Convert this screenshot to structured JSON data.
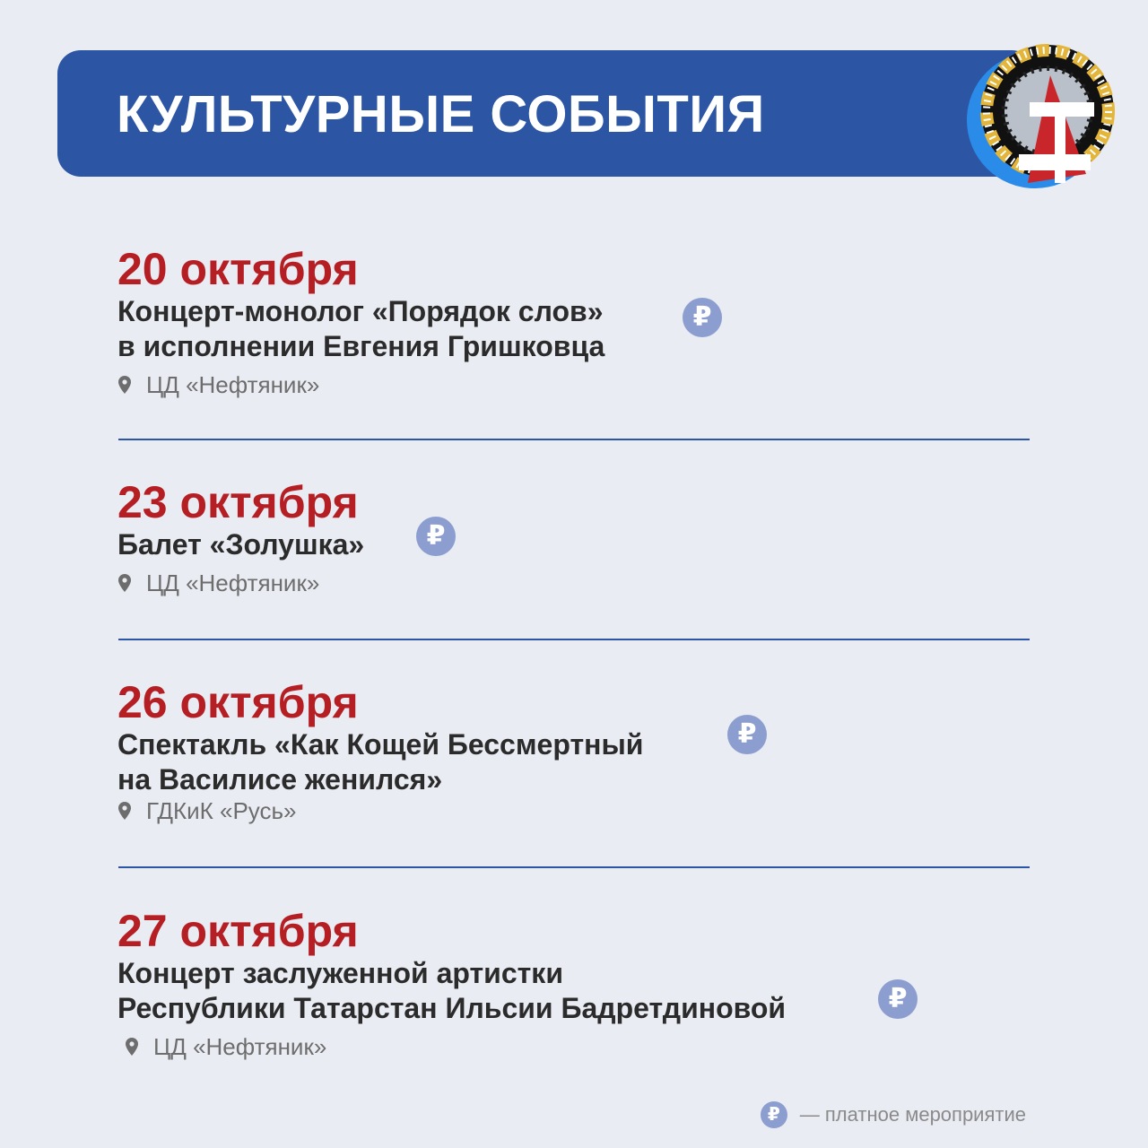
{
  "header": {
    "title": "КУЛЬТУРНЫЕ СОБЫТИЯ",
    "logo_icon": "ferris-wheel-tower-logo"
  },
  "colors": {
    "background": "#e9ecf3",
    "banner": "#2c56a3",
    "date": "#b51f24",
    "paid_badge": "#8c9dcf"
  },
  "events": [
    {
      "date": "20 октября",
      "title_lines": [
        "Концерт-монолог «Порядок слов»",
        "в исполнении Евгения Гришковца"
      ],
      "venue": "ЦД «Нефтяник»",
      "paid": true,
      "badge": "₽"
    },
    {
      "date": "23 октября",
      "title_lines": [
        "Балет «Золушка»"
      ],
      "venue": "ЦД «Нефтяник»",
      "paid": true,
      "badge": "₽"
    },
    {
      "date": "26 октября",
      "title_lines": [
        "Спектакль «Как Кощей Бессмертный",
        "на Василисе женился»"
      ],
      "venue": "ГДКиК «Русь»",
      "paid": true,
      "badge": "₽"
    },
    {
      "date": "27 октября",
      "title_lines": [
        "Концерт заслуженной артистки",
        "Республики Татарстан Ильсии Бадретдиновой"
      ],
      "venue": "ЦД «Нефтяник»",
      "paid": true,
      "badge": "₽"
    }
  ],
  "legend": {
    "badge": "₽",
    "text": "— платное мероприятие"
  }
}
